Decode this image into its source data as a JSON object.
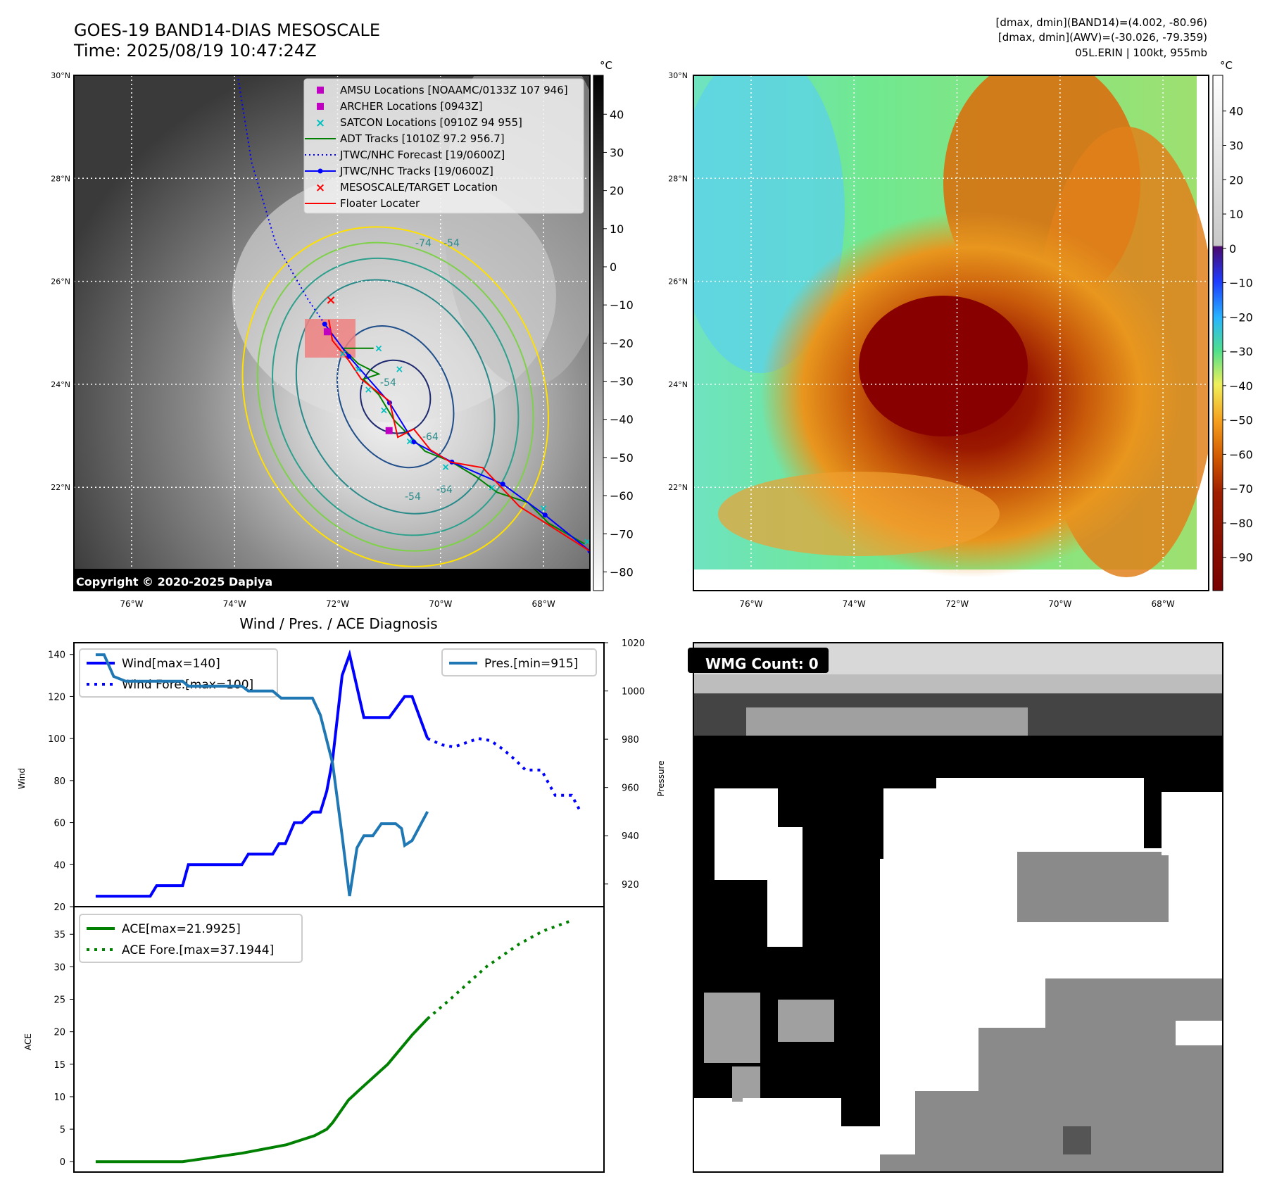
{
  "header": {
    "title_line1": "GOES-19 BAND14-DIAS MESOSCALE",
    "title_line2": "Time: 2025/08/19 10:47:24Z",
    "info_line1": "[dmax, dmin](BAND14)=(4.002, -80.96)",
    "info_line2": "[dmax, dmin](AWV)=(-30.026, -79.359)",
    "info_line3": "05L.ERIN | 100kt, 955mb"
  },
  "maps": {
    "lat_labels": [
      "30°N",
      "28°N",
      "26°N",
      "24°N",
      "22°N"
    ],
    "lat_values": [
      30,
      28,
      26,
      24,
      22
    ],
    "lon_labels": [
      "76°W",
      "74°W",
      "72°W",
      "70°W",
      "68°W"
    ],
    "lon_values": [
      -76,
      -74,
      -72,
      -70,
      -68
    ],
    "copyright": "Copyright © 2020-2025 Dapiya",
    "contour_labels": [
      "-54",
      "-74",
      "-64",
      "-64",
      "-54",
      "-54"
    ],
    "legend": [
      {
        "label": "AMSU Locations [NOAAMC/0133Z 107 946]",
        "marker": "square",
        "color": "#c000c0"
      },
      {
        "label": "ARCHER Locations [0943Z]",
        "marker": "square",
        "color": "#c000c0"
      },
      {
        "label": "SATCON Locations [0910Z 94 955]",
        "marker": "x",
        "color": "#00c0c0"
      },
      {
        "label": "ADT Tracks [1010Z 97.2 956.7]",
        "marker": "line",
        "color": "#008000"
      },
      {
        "label": "JTWC/NHC Forecast [19/0600Z]",
        "marker": "dotted",
        "color": "#0000ff"
      },
      {
        "label": "JTWC/NHC Tracks [19/0600Z]",
        "marker": "line-dot",
        "color": "#0000ff"
      },
      {
        "label": "MESOSCALE/TARGET Location",
        "marker": "x",
        "color": "#ff0000"
      },
      {
        "label": "Floater Locater",
        "marker": "line",
        "color": "#ff0000"
      }
    ],
    "tracks": {
      "jtwc": [
        [
          -67.1,
          20.76
        ],
        [
          -67.97,
          21.46
        ],
        [
          -68.79,
          22.06
        ],
        [
          -69.78,
          22.49
        ],
        [
          -70.52,
          22.88
        ],
        [
          -70.99,
          23.64
        ],
        [
          -71.78,
          24.54
        ],
        [
          -72.25,
          25.17
        ]
      ],
      "forecast": [
        [
          -72.25,
          25.17
        ],
        [
          -72.57,
          25.64
        ],
        [
          -73.2,
          26.74
        ],
        [
          -73.67,
          28.31
        ],
        [
          -73.94,
          30.0
        ]
      ],
      "floater": [
        [
          -67.1,
          20.76
        ],
        [
          -68.47,
          21.63
        ],
        [
          -69.18,
          22.38
        ],
        [
          -69.81,
          22.49
        ],
        [
          -70.2,
          22.73
        ],
        [
          -70.52,
          23.13
        ],
        [
          -70.83,
          22.97
        ],
        [
          -70.99,
          23.67
        ],
        [
          -71.54,
          24.1
        ],
        [
          -71.78,
          24.46
        ],
        [
          -72.1,
          24.85
        ],
        [
          -72.17,
          25.25
        ]
      ],
      "adt": [
        [
          -67.2,
          20.9
        ],
        [
          -67.9,
          21.3
        ],
        [
          -68.3,
          21.7
        ],
        [
          -68.9,
          21.9
        ],
        [
          -69.3,
          22.2
        ],
        [
          -69.8,
          22.5
        ],
        [
          -70.3,
          22.7
        ],
        [
          -70.6,
          23.0
        ],
        [
          -70.9,
          23.3
        ],
        [
          -71.2,
          23.8
        ],
        [
          -71.5,
          24.1
        ],
        [
          -71.2,
          24.2
        ],
        [
          -71.6,
          24.4
        ],
        [
          -71.9,
          24.7
        ],
        [
          -71.3,
          24.7
        ]
      ],
      "target": [
        -72.13,
        25.64
      ],
      "amsu": [
        -72.2,
        25.02
      ],
      "archer": [
        -71.0,
        23.1
      ],
      "satcon": [
        [
          -67.15,
          20.95
        ],
        [
          -68.0,
          21.6
        ],
        [
          -69.0,
          22.0
        ],
        [
          -69.9,
          22.4
        ],
        [
          -70.6,
          22.9
        ],
        [
          -71.1,
          23.5
        ],
        [
          -71.4,
          23.9
        ],
        [
          -71.6,
          24.3
        ],
        [
          -71.9,
          24.6
        ],
        [
          -71.2,
          24.7
        ],
        [
          -70.8,
          24.3
        ]
      ]
    }
  },
  "colorbar_band14": {
    "unit": "°C",
    "ticks": [
      "40",
      "30",
      "20",
      "10",
      "0",
      "−10",
      "−20",
      "−30",
      "−40",
      "−50",
      "−60",
      "−70",
      "−80"
    ],
    "values": [
      40,
      30,
      20,
      10,
      0,
      -10,
      -20,
      -30,
      -40,
      -50,
      -60,
      -70,
      -80
    ],
    "range": [
      50.2,
      -84.9
    ]
  },
  "colorbar_awv": {
    "unit": "°C",
    "ticks": [
      "40",
      "30",
      "20",
      "10",
      "0",
      "−10",
      "−20",
      "−30",
      "−40",
      "−50",
      "−60",
      "−70",
      "−80",
      "−90"
    ],
    "values": [
      40,
      30,
      20,
      10,
      0,
      -10,
      -20,
      -30,
      -40,
      -50,
      -60,
      -70,
      -80,
      -90
    ],
    "range": [
      50.4,
      -99.7
    ]
  },
  "chart_data": [
    {
      "type": "line",
      "title": "Wind / Pres. / ACE Diagnosis",
      "xlabel": "",
      "ylabel": "Wind",
      "y2label": "Pressure",
      "xlim": [
        0,
        100
      ],
      "ylim": [
        20,
        145.6
      ],
      "y2lim": [
        910.6,
        1020
      ],
      "yticks": [
        "20",
        "40",
        "60",
        "80",
        "100",
        "120",
        "140"
      ],
      "ytick_values": [
        20,
        40,
        60,
        80,
        100,
        120,
        140
      ],
      "y2ticks": [
        "920",
        "940",
        "960",
        "980",
        "1000",
        "1020"
      ],
      "y2tick_values": [
        920,
        940,
        960,
        980,
        1000,
        1020
      ],
      "legend_left": "upper-left",
      "legend_right": "upper-right",
      "series": [
        {
          "name": "Wind[max=140]",
          "color": "#0000ff",
          "style": "solid",
          "axis": "left",
          "points": [
            [
              4.1,
              25
            ],
            [
              14.4,
              25
            ],
            [
              15.6,
              30
            ],
            [
              20.5,
              30
            ],
            [
              21.6,
              40
            ],
            [
              31.7,
              40
            ],
            [
              32.9,
              45
            ],
            [
              37.5,
              45
            ],
            [
              38.7,
              50
            ],
            [
              39.9,
              50
            ],
            [
              41.6,
              60
            ],
            [
              43,
              60
            ],
            [
              45,
              65
            ],
            [
              46.5,
              65
            ],
            [
              47.7,
              75
            ],
            [
              48.8,
              90
            ],
            [
              50.6,
              130
            ],
            [
              52,
              140
            ],
            [
              54.7,
              110
            ],
            [
              59.5,
              110
            ],
            [
              62.4,
              120
            ],
            [
              63.8,
              120
            ],
            [
              66.7,
              100
            ]
          ]
        },
        {
          "name": "Wind Fore.[max=100]",
          "color": "#0000ff",
          "style": "dotted",
          "axis": "left",
          "points": [
            [
              66.7,
              100
            ],
            [
              69.4,
              97
            ],
            [
              71.7,
              96
            ],
            [
              76.3,
              100
            ],
            [
              78.6,
              99
            ],
            [
              80.9,
              95
            ],
            [
              83.2,
              90
            ],
            [
              85.2,
              85
            ],
            [
              88.2,
              85
            ],
            [
              90.8,
              73
            ],
            [
              93.9,
              73
            ],
            [
              95.4,
              66
            ]
          ]
        },
        {
          "name": "Pres.[min=915]",
          "color": "#1f77b4",
          "style": "solid",
          "axis": "right",
          "points": [
            [
              4.1,
              1015
            ],
            [
              5.7,
              1015
            ],
            [
              7.5,
              1006
            ],
            [
              9.8,
              1004
            ],
            [
              20.5,
              1004
            ],
            [
              21.6,
              1002
            ],
            [
              31.7,
              1002
            ],
            [
              32.9,
              1000
            ],
            [
              37.5,
              1000
            ],
            [
              39.1,
              997
            ],
            [
              45,
              997
            ],
            [
              46.5,
              990
            ],
            [
              48.8,
              970
            ],
            [
              50.6,
              940
            ],
            [
              52,
              915
            ],
            [
              53.4,
              935
            ],
            [
              54.7,
              940
            ],
            [
              56.4,
              940
            ],
            [
              58,
              945
            ],
            [
              60.7,
              945
            ],
            [
              61.8,
              943
            ],
            [
              62.4,
              936
            ],
            [
              63.8,
              938
            ],
            [
              66.7,
              950
            ]
          ]
        }
      ]
    },
    {
      "type": "line",
      "title": "",
      "xlabel": "",
      "ylabel": "ACE",
      "xlim": [
        0,
        100
      ],
      "ylim": [
        -1.6,
        39.25
      ],
      "yticks": [
        "0",
        "5",
        "10",
        "15",
        "20",
        "25",
        "30",
        "35"
      ],
      "ytick_values": [
        0,
        5,
        10,
        15,
        20,
        25,
        30,
        35
      ],
      "legend": "upper-left",
      "series": [
        {
          "name": "ACE[max=21.9925]",
          "color": "#008000",
          "style": "solid",
          "points": [
            [
              4.1,
              0
            ],
            [
              20.5,
              0
            ],
            [
              31.7,
              1.3
            ],
            [
              40.1,
              2.6
            ],
            [
              45.4,
              4
            ],
            [
              47.7,
              5
            ],
            [
              48.8,
              6
            ],
            [
              51.8,
              9.5
            ],
            [
              53.8,
              11
            ],
            [
              59.2,
              15
            ],
            [
              63.8,
              19.5
            ],
            [
              66.7,
              22
            ]
          ]
        },
        {
          "name": "ACE Fore.[max=37.1944]",
          "color": "#008000",
          "style": "dotted",
          "points": [
            [
              66.7,
              22
            ],
            [
              71,
              25
            ],
            [
              77.8,
              30
            ],
            [
              84,
              33.5
            ],
            [
              88.5,
              35.5
            ],
            [
              94.2,
              37.2
            ]
          ]
        }
      ]
    }
  ],
  "wmg": {
    "label": "WMG Count: 0"
  }
}
